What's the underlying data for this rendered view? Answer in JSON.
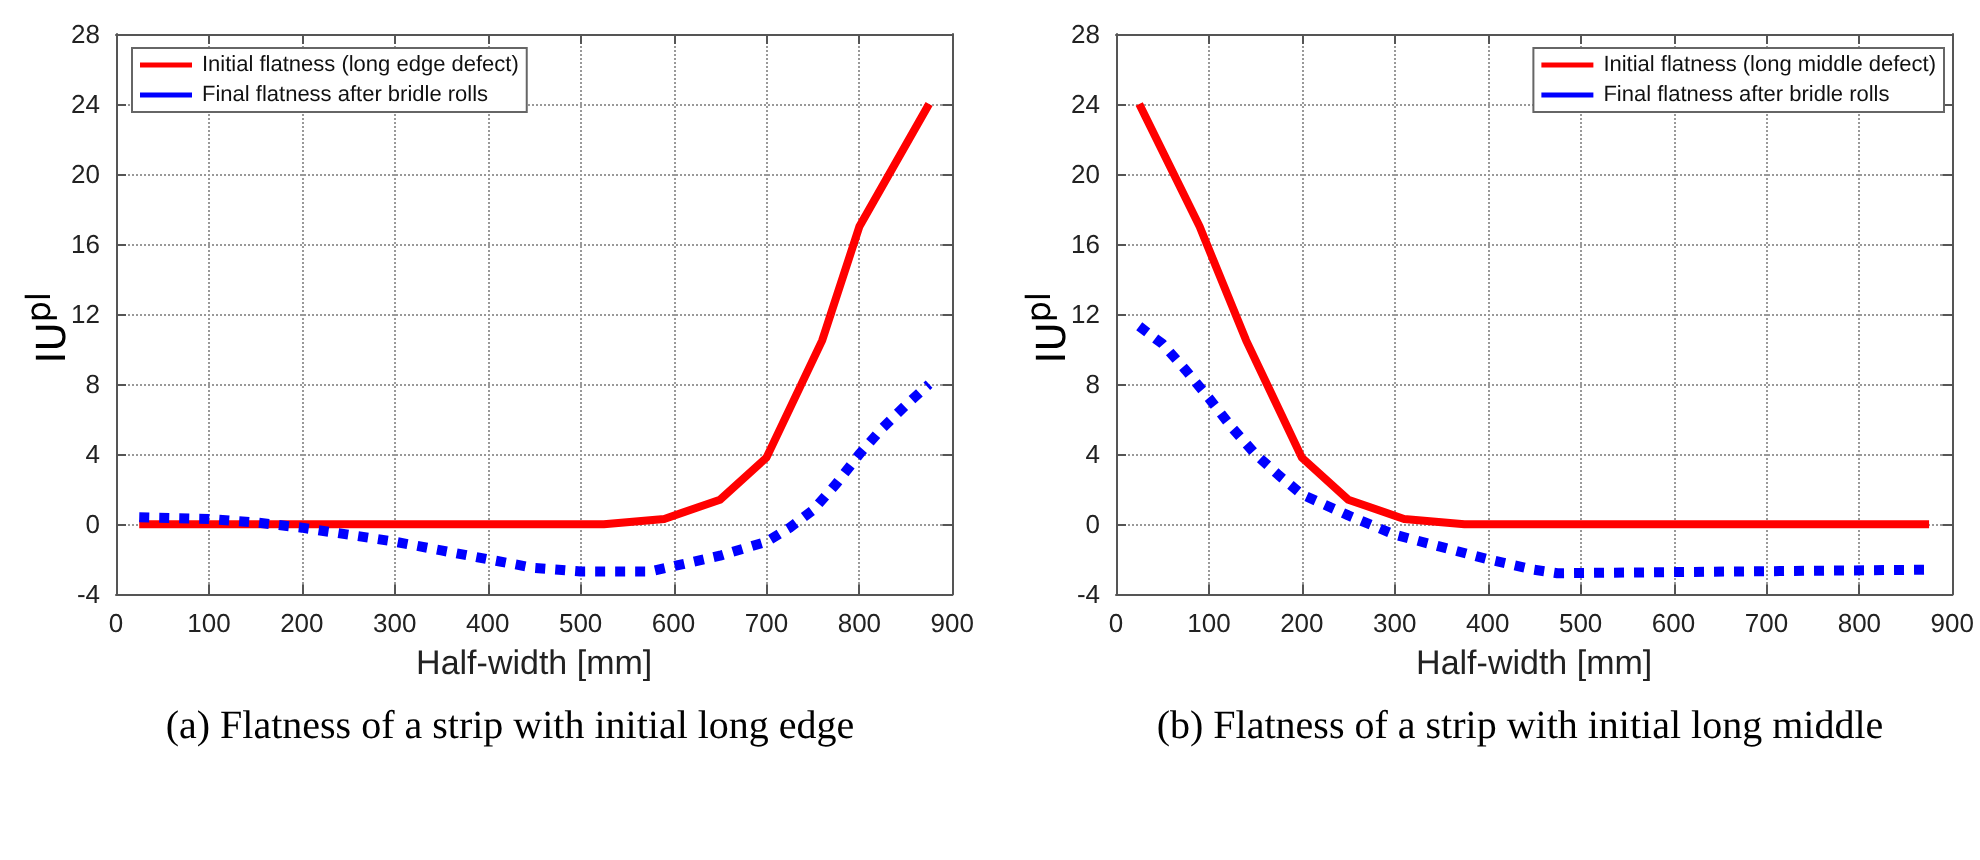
{
  "chart_data": [
    {
      "type": "line",
      "xlabel": "Half-width [mm]",
      "ylabel": "IU$^{pl}$",
      "annotations": [
        "(a) Flatness of a strip with initial long edge"
      ],
      "xlim": [
        0,
        900
      ],
      "xticks": [
        0,
        100,
        200,
        300,
        400,
        500,
        600,
        700,
        800,
        900
      ],
      "ylim": [
        -4,
        28
      ],
      "yticks": [
        -4,
        0,
        4,
        8,
        12,
        16,
        20,
        24,
        28
      ],
      "grid": true,
      "legend": "top left",
      "marker": "none",
      "series": [
        {
          "name": "Initial flatness (long edge defect)",
          "color": "#ff0000",
          "line_style": "solid",
          "x": [
            25,
            200,
            400,
            525,
            590,
            650,
            700,
            760,
            800,
            875
          ],
          "values": [
            0,
            0,
            0,
            0,
            0.3,
            1.4,
            3.8,
            10.5,
            17,
            24
          ]
        },
        {
          "name": "Final flatness after bridle rolls",
          "color": "#0000ff",
          "line_style": "dotted",
          "x": [
            25,
            100,
            150,
            200,
            250,
            300,
            350,
            400,
            450,
            500,
            575,
            600,
            650,
            700,
            725,
            750,
            775,
            800,
            825,
            850,
            875
          ],
          "values": [
            0.4,
            0.3,
            0.1,
            -0.2,
            -0.6,
            -1.0,
            -1.5,
            -2.0,
            -2.5,
            -2.7,
            -2.7,
            -2.4,
            -1.8,
            -1.0,
            -0.2,
            0.8,
            2.3,
            4.0,
            5.5,
            6.8,
            8.0
          ]
        }
      ]
    },
    {
      "type": "line",
      "xlabel": "Half-width [mm]",
      "ylabel": "IU$^{pl}$",
      "annotations": [
        "(b) Flatness of a strip with initial long middle"
      ],
      "xlim": [
        0,
        900
      ],
      "xticks": [
        0,
        100,
        200,
        300,
        400,
        500,
        600,
        700,
        800,
        900
      ],
      "ylim": [
        -4,
        28
      ],
      "yticks": [
        -4,
        0,
        4,
        8,
        12,
        16,
        20,
        24,
        28
      ],
      "grid": true,
      "legend": "top right",
      "marker": "none",
      "series": [
        {
          "name": "Initial flatness (long middle defect)",
          "color": "#ff0000",
          "line_style": "solid",
          "x": [
            25,
            90,
            140,
            200,
            250,
            310,
            375,
            875
          ],
          "values": [
            24,
            17,
            10.5,
            3.8,
            1.4,
            0.3,
            0,
            0
          ]
        },
        {
          "name": "Final flatness after bridle rolls",
          "color": "#0000ff",
          "line_style": "dotted",
          "x": [
            25,
            50,
            75,
            100,
            125,
            150,
            175,
            200,
            250,
            300,
            350,
            400,
            450,
            475,
            875
          ],
          "values": [
            11.3,
            10.3,
            8.8,
            7.2,
            5.5,
            4.0,
            2.8,
            1.7,
            0.5,
            -0.6,
            -1.3,
            -2.0,
            -2.6,
            -2.8,
            -2.6
          ]
        }
      ]
    }
  ]
}
